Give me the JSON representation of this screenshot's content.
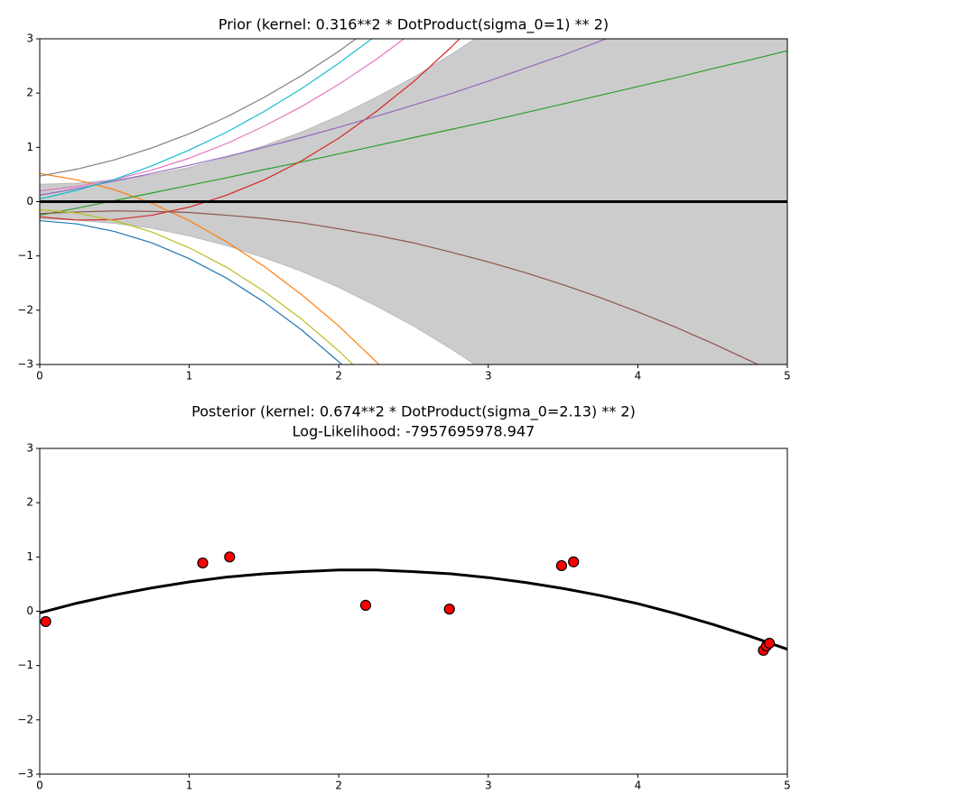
{
  "chart_data": [
    {
      "type": "line",
      "title": "Prior (kernel:  0.316**2 * DotProduct(sigma_0=1) ** 2)",
      "x": [
        0,
        0.25,
        0.5,
        0.75,
        1,
        1.25,
        1.5,
        1.75,
        2,
        2.25,
        2.5,
        2.75,
        3,
        3.25,
        3.5,
        3.75,
        4,
        4.25,
        4.5,
        4.75,
        5
      ],
      "band": {
        "color": "#cccccc",
        "upper": [
          0.32,
          0.34,
          0.4,
          0.49,
          0.63,
          0.81,
          1.03,
          1.28,
          1.58,
          1.92,
          2.29,
          2.71,
          3.16,
          3.65,
          4.19,
          4.76,
          5.37,
          6.02,
          6.72,
          7.45,
          8.22
        ],
        "lower": [
          -0.32,
          -0.34,
          -0.4,
          -0.49,
          -0.63,
          -0.81,
          -1.03,
          -1.28,
          -1.58,
          -1.92,
          -2.29,
          -2.71,
          -3.16,
          -3.65,
          -4.19,
          -4.76,
          -5.37,
          -6.02,
          -6.72,
          -7.45,
          -8.22
        ]
      },
      "series": [
        {
          "color": "#1f77b4",
          "values": [
            -0.35,
            -0.41,
            -0.55,
            -0.76,
            -1.05,
            -1.41,
            -1.85,
            -2.36,
            -2.95,
            -3.61,
            null,
            null,
            null,
            null,
            null,
            null,
            null,
            null,
            null,
            null,
            null
          ]
        },
        {
          "color": "#ff7f0e",
          "values": [
            0.52,
            0.4,
            0.22,
            -0.03,
            -0.35,
            -0.74,
            -1.19,
            -1.71,
            -2.29,
            -2.95,
            -3.67,
            null,
            null,
            null,
            null,
            null,
            null,
            null,
            null,
            null,
            null
          ]
        },
        {
          "color": "#2ca02c",
          "values": [
            -0.25,
            -0.12,
            0.02,
            0.16,
            0.3,
            0.44,
            0.59,
            0.73,
            0.88,
            1.03,
            1.18,
            1.33,
            1.48,
            1.64,
            1.8,
            1.96,
            2.12,
            2.28,
            2.45,
            2.61,
            2.78
          ]
        },
        {
          "color": "#d62728",
          "values": [
            -0.28,
            -0.34,
            -0.33,
            -0.25,
            -0.1,
            0.12,
            0.4,
            0.75,
            1.17,
            1.66,
            2.21,
            2.84,
            3.53,
            null,
            null,
            null,
            null,
            null,
            null,
            null,
            null
          ]
        },
        {
          "color": "#9467bd",
          "values": [
            0.12,
            0.24,
            0.38,
            0.52,
            0.67,
            0.83,
            1.0,
            1.18,
            1.37,
            1.57,
            1.78,
            1.99,
            2.22,
            2.46,
            2.7,
            2.96,
            3.22,
            null,
            null,
            null,
            null
          ]
        },
        {
          "color": "#8c564b",
          "values": [
            -0.22,
            -0.19,
            -0.17,
            -0.18,
            -0.2,
            -0.25,
            -0.31,
            -0.39,
            -0.5,
            -0.62,
            -0.76,
            -0.93,
            -1.11,
            -1.31,
            -1.53,
            -1.77,
            -2.03,
            -2.31,
            -2.61,
            -2.93,
            -3.27
          ]
        },
        {
          "color": "#e377c2",
          "values": [
            0.2,
            0.28,
            0.41,
            0.58,
            0.8,
            1.07,
            1.39,
            1.75,
            2.16,
            2.62,
            3.13,
            null,
            null,
            null,
            null,
            null,
            null,
            null,
            null,
            null,
            null
          ]
        },
        {
          "color": "#7f7f7f",
          "values": [
            0.47,
            0.6,
            0.77,
            0.99,
            1.25,
            1.56,
            1.92,
            2.32,
            2.77,
            3.27,
            null,
            null,
            null,
            null,
            null,
            null,
            null,
            null,
            null,
            null,
            null
          ]
        },
        {
          "color": "#bcbd22",
          "values": [
            -0.15,
            -0.21,
            -0.35,
            -0.56,
            -0.85,
            -1.21,
            -1.65,
            -2.16,
            -2.75,
            -3.41,
            null,
            null,
            null,
            null,
            null,
            null,
            null,
            null,
            null,
            null,
            null
          ]
        },
        {
          "color": "#17becf",
          "values": [
            0.05,
            0.21,
            0.41,
            0.66,
            0.95,
            1.28,
            1.66,
            2.08,
            2.55,
            3.06,
            null,
            null,
            null,
            null,
            null,
            null,
            null,
            null,
            null,
            null,
            null
          ]
        },
        {
          "color": "#000000",
          "linewidth": 3,
          "values": [
            0,
            0,
            0,
            0,
            0,
            0,
            0,
            0,
            0,
            0,
            0,
            0,
            0,
            0,
            0,
            0,
            0,
            0,
            0,
            0,
            0
          ]
        }
      ],
      "xlim": [
        0,
        5
      ],
      "xticks": [
        0,
        1,
        2,
        3,
        4,
        5
      ],
      "ylim": [
        -3,
        3
      ],
      "yticks": [
        {
          "value": -3,
          "label": "−3"
        },
        {
          "value": -2,
          "label": "−2"
        },
        {
          "value": -1,
          "label": "−1"
        },
        0,
        1,
        2,
        3
      ]
    },
    {
      "type": "scatter",
      "title": "Posterior (kernel: 0.674**2 * DotProduct(sigma_0=2.13) ** 2)",
      "subtitle": "Log-Likelihood: -7957695978.947",
      "x": [
        0.04,
        1.09,
        1.27,
        2.18,
        2.74,
        3.49,
        3.57,
        4.84,
        4.86,
        4.88
      ],
      "y": [
        -0.19,
        0.89,
        1.0,
        0.11,
        0.04,
        0.84,
        0.91,
        -0.72,
        -0.64,
        -0.59
      ],
      "color": "#ff0000",
      "edgecolor": "#000000",
      "line": {
        "color": "#000000",
        "x": [
          0,
          0.25,
          0.5,
          0.75,
          1,
          1.25,
          1.5,
          1.75,
          2,
          2.25,
          2.5,
          2.75,
          3,
          3.25,
          3.5,
          3.75,
          4,
          4.25,
          4.5,
          4.75,
          5
        ],
        "values": [
          -0.03,
          0.15,
          0.3,
          0.43,
          0.54,
          0.63,
          0.69,
          0.73,
          0.76,
          0.76,
          0.73,
          0.69,
          0.62,
          0.53,
          0.42,
          0.29,
          0.14,
          -0.04,
          -0.24,
          -0.46,
          -0.7
        ]
      },
      "xlim": [
        0,
        5
      ],
      "xticks": [
        0,
        1,
        2,
        3,
        4,
        5
      ],
      "ylim": [
        -3,
        3
      ],
      "yticks": [
        {
          "value": -3,
          "label": "−3"
        },
        {
          "value": -2,
          "label": "−2"
        },
        {
          "value": -1,
          "label": "−1"
        },
        0,
        1,
        2,
        3
      ]
    }
  ]
}
